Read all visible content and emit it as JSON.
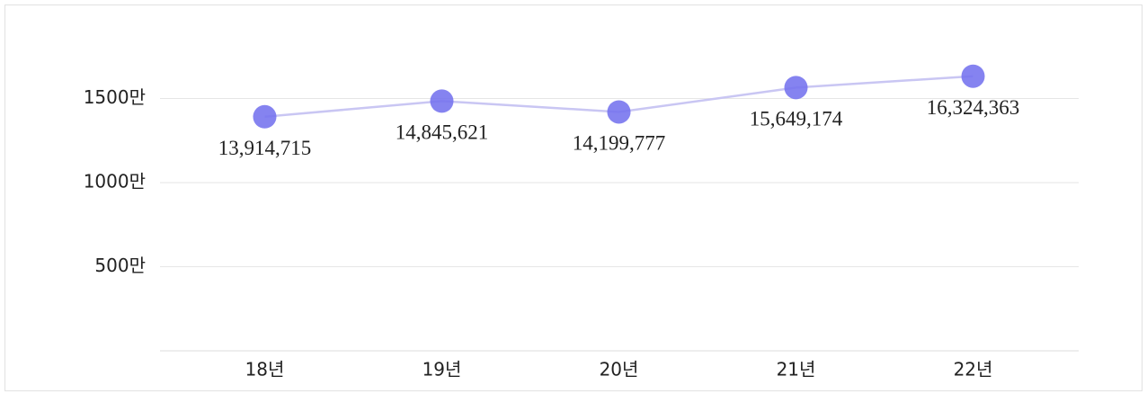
{
  "chart_data": {
    "type": "line",
    "categories": [
      "18년",
      "19년",
      "20년",
      "21년",
      "22년"
    ],
    "series": [
      {
        "color": "#7472ee",
        "line_color": "#c9c6f3",
        "values": [
          13914715,
          14845621,
          14199777,
          15649174,
          16324363
        ],
        "value_labels": [
          "13,914,715",
          "14,845,621",
          "14,199,777",
          "15,649,174",
          "16,324,363"
        ]
      }
    ],
    "ylim": [
      0,
      20000000
    ],
    "yticks": [
      {
        "value": 5000000,
        "label": "500만"
      },
      {
        "value": 10000000,
        "label": "1000만"
      },
      {
        "value": 15000000,
        "label": "1500만"
      }
    ],
    "grid": true
  }
}
